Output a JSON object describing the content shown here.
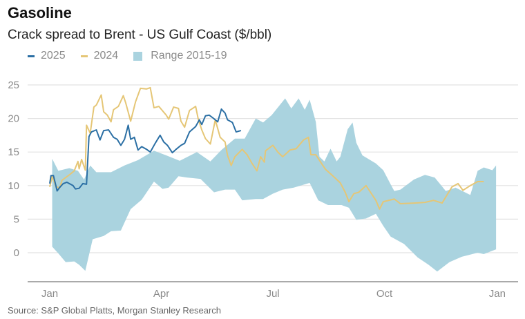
{
  "chart_data": {
    "type": "line",
    "title": "Gasoline",
    "subtitle": "Crack spread to Brent -  US Gulf Coast  ($/bbl)",
    "source": "Source: S&P Global Platts, Morgan Stanley Research",
    "xlabel": "",
    "ylabel": "$/bbl",
    "x_unit": "day of year",
    "xlim": [
      0,
      365
    ],
    "ylim": [
      -4,
      25
    ],
    "yticks": [
      0,
      5,
      10,
      15,
      20,
      25
    ],
    "xticks": [
      {
        "day": 0,
        "label": "Jan"
      },
      {
        "day": 91,
        "label": "Apr"
      },
      {
        "day": 182,
        "label": "Jul"
      },
      {
        "day": 273,
        "label": "Oct"
      },
      {
        "day": 365,
        "label": "Jan"
      }
    ],
    "grid": true,
    "legend_position": "top-left",
    "colors": {
      "s2025": "#2b6fa4",
      "s2024": "#e5c676",
      "range": "#aad3df"
    },
    "legend": [
      {
        "label": "2025",
        "kind": "line",
        "color": "#2b6fa4"
      },
      {
        "label": "2024",
        "kind": "line",
        "color": "#e5c676"
      },
      {
        "label": "Range 2015-19",
        "kind": "area",
        "color": "#aad3df"
      }
    ],
    "range": {
      "name": "Range 2015-19",
      "upper": [
        [
          2,
          14.0
        ],
        [
          7,
          12.2
        ],
        [
          16,
          12.6
        ],
        [
          23,
          12.2
        ],
        [
          28,
          10.9
        ],
        [
          33,
          13.0
        ],
        [
          38,
          12.0
        ],
        [
          50,
          12.0
        ],
        [
          61,
          13.0
        ],
        [
          72,
          13.8
        ],
        [
          85,
          15.2
        ],
        [
          95,
          14.5
        ],
        [
          106,
          13.7
        ],
        [
          120,
          15.0
        ],
        [
          131,
          13.6
        ],
        [
          140,
          15.3
        ],
        [
          151,
          17.0
        ],
        [
          159,
          17.0
        ],
        [
          168,
          20.0
        ],
        [
          174,
          19.4
        ],
        [
          181,
          20.5
        ],
        [
          192,
          23.0
        ],
        [
          197,
          21.5
        ],
        [
          203,
          23.0
        ],
        [
          208,
          21.3
        ],
        [
          212,
          22.8
        ],
        [
          217,
          19.5
        ],
        [
          220,
          14.3
        ],
        [
          224,
          13.6
        ],
        [
          229,
          15.5
        ],
        [
          234,
          13.6
        ],
        [
          237,
          14.3
        ],
        [
          243,
          18.4
        ],
        [
          247,
          19.4
        ],
        [
          250,
          16.4
        ],
        [
          255,
          14.5
        ],
        [
          266,
          13.3
        ],
        [
          272,
          12.3
        ],
        [
          278,
          10.2
        ],
        [
          281,
          9.2
        ],
        [
          286,
          9.4
        ],
        [
          297,
          10.9
        ],
        [
          306,
          11.6
        ],
        [
          314,
          11.2
        ],
        [
          323,
          9.2
        ],
        [
          331,
          9.7
        ],
        [
          343,
          8.6
        ],
        [
          349,
          12.2
        ],
        [
          354,
          12.7
        ],
        [
          361,
          12.3
        ],
        [
          364,
          13.0
        ]
      ],
      "lower": [
        [
          2,
          0.9
        ],
        [
          7,
          -0.1
        ],
        [
          13,
          -1.4
        ],
        [
          20,
          -1.3
        ],
        [
          24,
          -1.8
        ],
        [
          29,
          -2.7
        ],
        [
          35,
          2.0
        ],
        [
          44,
          2.5
        ],
        [
          50,
          3.2
        ],
        [
          58,
          3.3
        ],
        [
          66,
          6.5
        ],
        [
          75,
          7.9
        ],
        [
          85,
          10.6
        ],
        [
          92,
          9.5
        ],
        [
          97,
          9.7
        ],
        [
          105,
          11.4
        ],
        [
          112,
          11.2
        ],
        [
          123,
          11.0
        ],
        [
          134,
          9.0
        ],
        [
          143,
          9.4
        ],
        [
          151,
          9.4
        ],
        [
          157,
          7.8
        ],
        [
          168,
          8.0
        ],
        [
          174,
          8.0
        ],
        [
          182,
          8.8
        ],
        [
          190,
          9.4
        ],
        [
          199,
          9.7
        ],
        [
          212,
          10.4
        ],
        [
          219,
          7.8
        ],
        [
          227,
          7.1
        ],
        [
          238,
          7.1
        ],
        [
          244,
          6.7
        ],
        [
          250,
          4.9
        ],
        [
          258,
          5.1
        ],
        [
          266,
          5.8
        ],
        [
          272,
          4.0
        ],
        [
          278,
          2.4
        ],
        [
          289,
          1.3
        ],
        [
          300,
          -0.7
        ],
        [
          309,
          -1.8
        ],
        [
          316,
          -2.8
        ],
        [
          326,
          -1.4
        ],
        [
          336,
          -0.6
        ],
        [
          349,
          0.0
        ],
        [
          354,
          -0.2
        ],
        [
          364,
          0.5
        ]
      ]
    },
    "series": [
      {
        "name": "2024",
        "points": [
          [
            0,
            9.8
          ],
          [
            2,
            11.4
          ],
          [
            5,
            9.9
          ],
          [
            8,
            9.6
          ],
          [
            10,
            10.8
          ],
          [
            16,
            11.6
          ],
          [
            20,
            12.2
          ],
          [
            23,
            13.6
          ],
          [
            24,
            12.5
          ],
          [
            26,
            13.9
          ],
          [
            29,
            12.3
          ],
          [
            30,
            19.0
          ],
          [
            33,
            17.8
          ],
          [
            36,
            21.7
          ],
          [
            38,
            22.0
          ],
          [
            42,
            23.5
          ],
          [
            44,
            21.0
          ],
          [
            47,
            20.5
          ],
          [
            50,
            19.5
          ],
          [
            52,
            21.3
          ],
          [
            56,
            21.8
          ],
          [
            60,
            23.4
          ],
          [
            62,
            22.3
          ],
          [
            66,
            19.6
          ],
          [
            70,
            22.5
          ],
          [
            74,
            24.5
          ],
          [
            79,
            24.4
          ],
          [
            82,
            24.6
          ],
          [
            85,
            21.6
          ],
          [
            89,
            21.8
          ],
          [
            95,
            20.5
          ],
          [
            97,
            19.9
          ],
          [
            101,
            21.7
          ],
          [
            105,
            21.5
          ],
          [
            107,
            19.6
          ],
          [
            110,
            18.7
          ],
          [
            114,
            21.2
          ],
          [
            119,
            21.8
          ],
          [
            121,
            20.0
          ],
          [
            124,
            18.3
          ],
          [
            127,
            17.0
          ],
          [
            131,
            16.2
          ],
          [
            135,
            19.8
          ],
          [
            139,
            17.2
          ],
          [
            143,
            16.5
          ],
          [
            145,
            14.5
          ],
          [
            148,
            13.0
          ],
          [
            151,
            14.3
          ],
          [
            157,
            15.4
          ],
          [
            161,
            14.6
          ],
          [
            165,
            13.3
          ],
          [
            169,
            12.2
          ],
          [
            172,
            14.3
          ],
          [
            175,
            13.5
          ],
          [
            176,
            15.2
          ],
          [
            182,
            16.0
          ],
          [
            186,
            15.0
          ],
          [
            190,
            14.3
          ],
          [
            196,
            15.3
          ],
          [
            201,
            15.5
          ],
          [
            207,
            16.8
          ],
          [
            211,
            17.2
          ],
          [
            213,
            14.6
          ],
          [
            217,
            14.6
          ],
          [
            222,
            13.2
          ],
          [
            225,
            12.4
          ],
          [
            230,
            11.6
          ],
          [
            237,
            10.4
          ],
          [
            241,
            9.0
          ],
          [
            244,
            7.6
          ],
          [
            248,
            8.8
          ],
          [
            252,
            9.0
          ],
          [
            258,
            10.0
          ],
          [
            262,
            8.9
          ],
          [
            266,
            7.8
          ],
          [
            269,
            6.5
          ],
          [
            272,
            7.6
          ],
          [
            281,
            8.0
          ],
          [
            286,
            7.3
          ],
          [
            297,
            7.4
          ],
          [
            306,
            7.5
          ],
          [
            313,
            7.8
          ],
          [
            320,
            7.4
          ],
          [
            328,
            9.8
          ],
          [
            333,
            10.3
          ],
          [
            337,
            9.3
          ],
          [
            343,
            10.0
          ],
          [
            349,
            10.6
          ],
          [
            354,
            10.6
          ]
        ]
      },
      {
        "name": "2025",
        "points": [
          [
            0,
            10.3
          ],
          [
            1,
            11.5
          ],
          [
            3,
            11.5
          ],
          [
            5,
            10.0
          ],
          [
            6,
            9.2
          ],
          [
            8,
            9.7
          ],
          [
            11,
            10.3
          ],
          [
            14,
            10.5
          ],
          [
            19,
            10.0
          ],
          [
            21,
            9.5
          ],
          [
            24,
            9.6
          ],
          [
            27,
            10.3
          ],
          [
            30,
            10.2
          ],
          [
            32,
            17.3
          ],
          [
            34,
            18.0
          ],
          [
            38,
            18.3
          ],
          [
            41,
            16.8
          ],
          [
            44,
            18.2
          ],
          [
            48,
            18.3
          ],
          [
            52,
            17.2
          ],
          [
            55,
            16.9
          ],
          [
            58,
            16.0
          ],
          [
            61,
            16.9
          ],
          [
            64,
            19.0
          ],
          [
            66,
            16.9
          ],
          [
            69,
            17.2
          ],
          [
            72,
            15.3
          ],
          [
            75,
            15.8
          ],
          [
            79,
            15.4
          ],
          [
            82,
            15.0
          ],
          [
            86,
            16.3
          ],
          [
            90,
            17.5
          ],
          [
            93,
            16.5
          ],
          [
            96,
            16.0
          ],
          [
            100,
            14.9
          ],
          [
            103,
            15.4
          ],
          [
            107,
            16.0
          ],
          [
            110,
            16.3
          ],
          [
            114,
            18.0
          ],
          [
            119,
            18.8
          ],
          [
            122,
            19.8
          ],
          [
            124,
            19.1
          ],
          [
            127,
            20.4
          ],
          [
            130,
            20.5
          ],
          [
            133,
            20.1
          ],
          [
            137,
            19.5
          ],
          [
            140,
            21.4
          ],
          [
            143,
            20.8
          ],
          [
            145,
            19.8
          ],
          [
            149,
            19.4
          ],
          [
            152,
            18.0
          ],
          [
            156,
            18.2
          ]
        ]
      }
    ]
  }
}
